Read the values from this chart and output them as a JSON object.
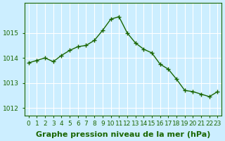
{
  "x": [
    0,
    1,
    2,
    3,
    4,
    5,
    6,
    7,
    8,
    9,
    10,
    11,
    12,
    13,
    14,
    15,
    16,
    17,
    18,
    19,
    20,
    21,
    22,
    23
  ],
  "y": [
    1013.8,
    1013.9,
    1014.0,
    1013.85,
    1014.1,
    1014.3,
    1014.45,
    1014.5,
    1014.7,
    1015.1,
    1015.55,
    1015.65,
    1015.0,
    1014.6,
    1014.35,
    1014.2,
    1013.75,
    1013.55,
    1013.15,
    1012.7,
    1012.65,
    1012.55,
    1012.45,
    1012.65
  ],
  "line_color": "#1a6600",
  "marker": "+",
  "marker_size": 4,
  "line_width": 1.0,
  "bg_color": "#cceeff",
  "grid_color": "#ffffff",
  "xlabel": "Graphe pression niveau de la mer (hPa)",
  "xlabel_fontsize": 8,
  "tick_color": "#1a6600",
  "tick_fontsize": 6.5,
  "yticks": [
    1012,
    1013,
    1014,
    1015
  ],
  "ylim": [
    1011.7,
    1016.2
  ],
  "xlim": [
    -0.5,
    23.5
  ]
}
